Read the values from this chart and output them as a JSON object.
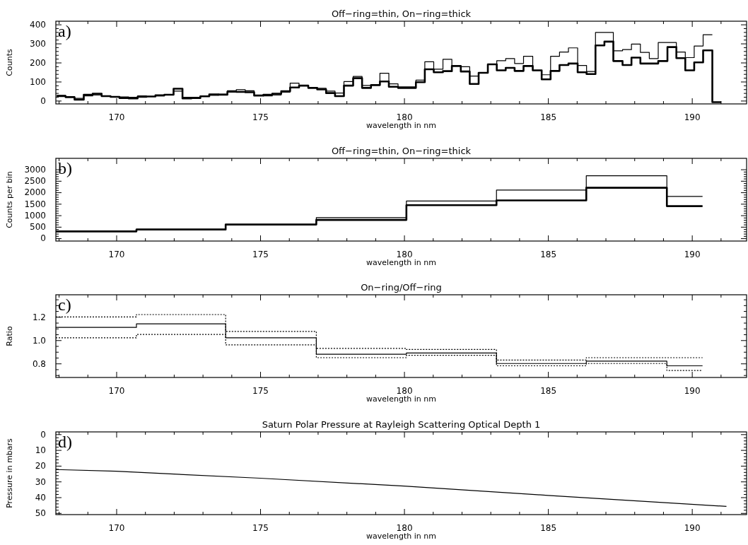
{
  "chart_data": [
    {
      "type": "step",
      "title": "Off−ring=thin, On−ring=thick",
      "xlabel": "wavelength in nm",
      "ylabel": "Counts",
      "annotations": [
        "a)"
      ],
      "xlim": [
        167.9,
        191.9
      ],
      "xticks": [
        {
          "value": 168,
          "label": null
        },
        {
          "value": 169,
          "label": null
        },
        170,
        {
          "value": 171,
          "label": null
        },
        {
          "value": 172,
          "label": null
        },
        {
          "value": 173,
          "label": null
        },
        {
          "value": 174,
          "label": null
        },
        175,
        {
          "value": 176,
          "label": null
        },
        {
          "value": 177,
          "label": null
        },
        {
          "value": 178,
          "label": null
        },
        {
          "value": 179,
          "label": null
        },
        180,
        {
          "value": 181,
          "label": null
        },
        {
          "value": 182,
          "label": null
        },
        {
          "value": 183,
          "label": null
        },
        {
          "value": 184,
          "label": null
        },
        185,
        {
          "value": 186,
          "label": null
        },
        {
          "value": 187,
          "label": null
        },
        {
          "value": 188,
          "label": null
        },
        {
          "value": 189,
          "label": null
        },
        190,
        {
          "value": 191,
          "label": null
        }
      ],
      "ylim": [
        -17,
        417
      ],
      "yticks": [
        0,
        {
          "value": 20,
          "label": null
        },
        {
          "value": 40,
          "label": null
        },
        {
          "value": 60,
          "label": null
        },
        {
          "value": 80,
          "label": null
        },
        100,
        {
          "value": 120,
          "label": null
        },
        {
          "value": 140,
          "label": null
        },
        {
          "value": 160,
          "label": null
        },
        {
          "value": 180,
          "label": null
        },
        200,
        {
          "value": 220,
          "label": null
        },
        {
          "value": 240,
          "label": null
        },
        {
          "value": 260,
          "label": null
        },
        {
          "value": 280,
          "label": null
        },
        300,
        {
          "value": 320,
          "label": null
        },
        {
          "value": 340,
          "label": null
        },
        {
          "value": 360,
          "label": null
        },
        {
          "value": 380,
          "label": null
        },
        400
      ],
      "x": [
        167.93,
        168.24,
        168.55,
        168.87,
        169.18,
        169.49,
        169.8,
        170.11,
        170.43,
        170.74,
        171.05,
        171.36,
        171.67,
        171.99,
        172.3,
        172.61,
        172.92,
        173.23,
        173.55,
        173.86,
        174.17,
        174.48,
        174.79,
        175.11,
        175.42,
        175.73,
        176.04,
        176.35,
        176.67,
        176.98,
        177.29,
        177.6,
        177.91,
        178.23,
        178.54,
        178.85,
        179.16,
        179.47,
        179.79,
        180.1,
        180.41,
        180.72,
        181.03,
        181.35,
        181.66,
        181.97,
        182.28,
        182.59,
        182.91,
        183.22,
        183.53,
        183.84,
        184.15,
        184.47,
        184.78,
        185.09,
        185.4,
        185.71,
        186.03,
        186.34,
        186.65,
        186.96,
        187.27,
        187.59,
        187.9,
        188.21,
        188.52,
        188.83,
        189.15,
        189.46,
        189.77,
        190.08,
        190.39,
        190.71,
        191.02
      ],
      "series": [
        {
          "color": "#000000",
          "values": [
            28,
            22,
            12,
            25,
            30,
            25,
            22,
            20,
            18,
            25,
            22,
            25,
            32,
            50,
            18,
            18,
            22,
            28,
            35,
            52,
            58,
            52,
            28,
            25,
            30,
            45,
            92,
            80,
            70,
            65,
            50,
            40,
            100,
            127,
            80,
            80,
            144,
            88,
            73,
            73,
            108,
            204,
            165,
            217,
            182,
            178,
            129,
            146,
            191,
            210,
            221,
            195,
            233,
            159,
            136,
            233,
            255,
            277,
            185,
            153,
            358,
            358,
            262,
            268,
            297,
            253,
            221,
            305,
            305,
            255,
            226,
            287,
            346,
            346,
            null
          ]
        },
        {
          "color": "#000000",
          "values": [
            24,
            18,
            5,
            31,
            37,
            24,
            20,
            14,
            12,
            20,
            22,
            28,
            31,
            63,
            12,
            14,
            23,
            33,
            31,
            47,
            46,
            44,
            27,
            31,
            37,
            50,
            69,
            79,
            67,
            59,
            40,
            24,
            79,
            118,
            67,
            82,
            101,
            73,
            67,
            67,
            97,
            165,
            149,
            155,
            182,
            153,
            88,
            146,
            191,
            159,
            172,
            156,
            182,
            159,
            112,
            156,
            187,
            195,
            149,
            140,
            290,
            310,
            208,
            187,
            226,
            195,
            195,
            208,
            281,
            223,
            159,
            201,
            264,
            -8,
            -8
          ]
        }
      ]
    },
    {
      "type": "step",
      "title": "Off−ring=thin, On−ring=thick",
      "xlabel": "wavelength in nm",
      "ylabel": "Counts per bin",
      "annotations": [
        "b)"
      ],
      "xlim": [
        167.9,
        191.9
      ],
      "xticks": [
        {
          "value": 168,
          "label": null
        },
        {
          "value": 169,
          "label": null
        },
        170,
        {
          "value": 171,
          "label": null
        },
        {
          "value": 172,
          "label": null
        },
        {
          "value": 173,
          "label": null
        },
        {
          "value": 174,
          "label": null
        },
        175,
        {
          "value": 176,
          "label": null
        },
        {
          "value": 177,
          "label": null
        },
        {
          "value": 178,
          "label": null
        },
        {
          "value": 179,
          "label": null
        },
        180,
        {
          "value": 181,
          "label": null
        },
        {
          "value": 182,
          "label": null
        },
        {
          "value": 183,
          "label": null
        },
        {
          "value": 184,
          "label": null
        },
        185,
        {
          "value": 186,
          "label": null
        },
        {
          "value": 187,
          "label": null
        },
        {
          "value": 188,
          "label": null
        },
        {
          "value": 189,
          "label": null
        },
        190,
        {
          "value": 191,
          "label": null
        }
      ],
      "ylim": [
        -120,
        3480
      ],
      "yticks": [
        0,
        {
          "value": 100,
          "label": null
        },
        {
          "value": 200,
          "label": null
        },
        {
          "value": 300,
          "label": null
        },
        {
          "value": 400,
          "label": null
        },
        500,
        {
          "value": 600,
          "label": null
        },
        {
          "value": 700,
          "label": null
        },
        {
          "value": 800,
          "label": null
        },
        {
          "value": 900,
          "label": null
        },
        1000,
        {
          "value": 1100,
          "label": null
        },
        {
          "value": 1200,
          "label": null
        },
        {
          "value": 1300,
          "label": null
        },
        {
          "value": 1400,
          "label": null
        },
        1500,
        {
          "value": 1600,
          "label": null
        },
        {
          "value": 1700,
          "label": null
        },
        {
          "value": 1800,
          "label": null
        },
        {
          "value": 1900,
          "label": null
        },
        2000,
        {
          "value": 2100,
          "label": null
        },
        {
          "value": 2200,
          "label": null
        },
        {
          "value": 2300,
          "label": null
        },
        {
          "value": 2400,
          "label": null
        },
        2500,
        {
          "value": 2600,
          "label": null
        },
        {
          "value": 2700,
          "label": null
        },
        {
          "value": 2800,
          "label": null
        },
        {
          "value": 2900,
          "label": null
        },
        3000
      ],
      "x": [
        167.9,
        170.7,
        173.8,
        176.95,
        180.08,
        183.21,
        186.33,
        189.13,
        190.37
      ],
      "series": [
        {
          "color": "#000000",
          "values": [
            300,
            400,
            600,
            900,
            1620,
            2100,
            2720,
            1820,
            1820
          ]
        },
        {
          "color": "#000000",
          "values": [
            300,
            380,
            600,
            800,
            1440,
            1650,
            2200,
            1400,
            1400
          ]
        }
      ]
    },
    {
      "type": "step",
      "title": "On−ring/Off−ring",
      "xlabel": "wavelength in nm",
      "ylabel": "Ratio",
      "annotations": [
        "c)"
      ],
      "xlim": [
        167.9,
        191.9
      ],
      "xticks": [
        {
          "value": 168,
          "label": null
        },
        {
          "value": 169,
          "label": null
        },
        170,
        {
          "value": 171,
          "label": null
        },
        {
          "value": 172,
          "label": null
        },
        {
          "value": 173,
          "label": null
        },
        {
          "value": 174,
          "label": null
        },
        175,
        {
          "value": 176,
          "label": null
        },
        {
          "value": 177,
          "label": null
        },
        {
          "value": 178,
          "label": null
        },
        {
          "value": 179,
          "label": null
        },
        180,
        {
          "value": 181,
          "label": null
        },
        {
          "value": 182,
          "label": null
        },
        {
          "value": 183,
          "label": null
        },
        {
          "value": 184,
          "label": null
        },
        185,
        {
          "value": 186,
          "label": null
        },
        {
          "value": 187,
          "label": null
        },
        {
          "value": 188,
          "label": null
        },
        {
          "value": 189,
          "label": null
        },
        190,
        {
          "value": 191,
          "label": null
        }
      ],
      "ylim": [
        0.68,
        1.39
      ],
      "yticks": [
        {
          "value": 0.7,
          "label": null
        },
        {
          "value": 0.75,
          "label": null
        },
        {
          "value": 0.8,
          "label": "0.8"
        },
        {
          "value": 0.85,
          "label": null
        },
        {
          "value": 0.9,
          "label": null
        },
        {
          "value": 0.95,
          "label": null
        },
        {
          "value": 1.0,
          "label": "1.0"
        },
        {
          "value": 1.05,
          "label": null
        },
        {
          "value": 1.1,
          "label": null
        },
        {
          "value": 1.15,
          "label": null
        },
        {
          "value": 1.2,
          "label": "1.2"
        },
        {
          "value": 1.25,
          "label": null
        },
        {
          "value": 1.3,
          "label": null
        },
        {
          "value": 1.35,
          "label": null
        }
      ],
      "x": [
        167.9,
        170.7,
        173.8,
        176.95,
        180.08,
        183.21,
        186.33,
        189.13,
        190.37
      ],
      "series": [
        {
          "color": "#000000",
          "line_style": "solid",
          "values": [
            1.11,
            1.14,
            1.02,
            0.88,
            0.89,
            0.8,
            0.82,
            0.78,
            0.78
          ]
        },
        {
          "color": "#000000",
          "line_style": "dotted",
          "values": [
            1.2,
            1.22,
            1.075,
            0.93,
            0.92,
            0.83,
            0.85,
            0.85,
            0.85
          ]
        },
        {
          "color": "#000000",
          "line_style": "dotted",
          "values": [
            1.02,
            1.05,
            0.96,
            0.85,
            0.87,
            0.78,
            0.8,
            0.74,
            0.74
          ]
        }
      ]
    },
    {
      "type": "line",
      "title": "Saturn Polar Pressure at Rayleigh Scattering Optical Depth 1",
      "xlabel": "wavelength in nm",
      "ylabel": "Pressure in mbars",
      "annotations": [
        "d)"
      ],
      "marker": "none",
      "line_style": "solid",
      "xlim": [
        167.9,
        191.9
      ],
      "xticks": [
        {
          "value": 168,
          "label": null
        },
        {
          "value": 169,
          "label": null
        },
        170,
        {
          "value": 171,
          "label": null
        },
        {
          "value": 172,
          "label": null
        },
        {
          "value": 173,
          "label": null
        },
        {
          "value": 174,
          "label": null
        },
        175,
        {
          "value": 176,
          "label": null
        },
        {
          "value": 177,
          "label": null
        },
        {
          "value": 178,
          "label": null
        },
        {
          "value": 179,
          "label": null
        },
        180,
        {
          "value": 181,
          "label": null
        },
        {
          "value": 182,
          "label": null
        },
        {
          "value": 183,
          "label": null
        },
        {
          "value": 184,
          "label": null
        },
        185,
        {
          "value": 186,
          "label": null
        },
        {
          "value": 187,
          "label": null
        },
        {
          "value": 188,
          "label": null
        },
        {
          "value": 189,
          "label": null
        },
        190,
        {
          "value": 191,
          "label": null
        }
      ],
      "ylim": [
        51,
        -1.5
      ],
      "yticks": [
        0,
        {
          "value": 2,
          "label": null
        },
        {
          "value": 4,
          "label": null
        },
        {
          "value": 6,
          "label": null
        },
        {
          "value": 8,
          "label": null
        },
        10,
        {
          "value": 12,
          "label": null
        },
        {
          "value": 14,
          "label": null
        },
        {
          "value": 16,
          "label": null
        },
        {
          "value": 18,
          "label": null
        },
        20,
        {
          "value": 22,
          "label": null
        },
        {
          "value": 24,
          "label": null
        },
        {
          "value": 26,
          "label": null
        },
        {
          "value": 28,
          "label": null
        },
        30,
        {
          "value": 32,
          "label": null
        },
        {
          "value": 34,
          "label": null
        },
        {
          "value": 36,
          "label": null
        },
        {
          "value": 38,
          "label": null
        },
        40,
        {
          "value": 42,
          "label": null
        },
        {
          "value": 44,
          "label": null
        },
        {
          "value": 46,
          "label": null
        },
        {
          "value": 48,
          "label": null
        },
        50
      ],
      "x": [
        167.9,
        170,
        175,
        180,
        185,
        191.2
      ],
      "series": [
        {
          "color": "#000000",
          "values": [
            22.4,
            23.5,
            27.9,
            32.9,
            38.8,
            45.8
          ]
        }
      ]
    }
  ]
}
